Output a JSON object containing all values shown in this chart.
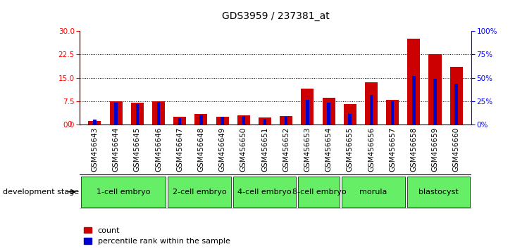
{
  "title": "GDS3959 / 237381_at",
  "samples": [
    "GSM456643",
    "GSM456644",
    "GSM456645",
    "GSM456646",
    "GSM456647",
    "GSM456648",
    "GSM456649",
    "GSM456650",
    "GSM456651",
    "GSM456652",
    "GSM456653",
    "GSM456654",
    "GSM456655",
    "GSM456656",
    "GSM456657",
    "GSM456658",
    "GSM456659",
    "GSM456660"
  ],
  "count_values": [
    1.2,
    7.5,
    7.0,
    7.5,
    2.5,
    3.5,
    2.5,
    3.0,
    2.2,
    2.8,
    11.5,
    8.5,
    6.5,
    13.5,
    8.0,
    27.5,
    22.5,
    18.5
  ],
  "percentile_values": [
    5,
    23,
    22,
    24,
    7,
    10,
    8,
    9,
    6,
    8,
    26,
    23,
    11,
    32,
    25,
    52,
    49,
    44
  ],
  "stage_groups": [
    {
      "name": "1-cell embryo",
      "start": 0,
      "end": 4
    },
    {
      "name": "2-cell embryo",
      "start": 4,
      "end": 7
    },
    {
      "name": "4-cell embryo",
      "start": 7,
      "end": 10
    },
    {
      "name": "8-cell embryo",
      "start": 10,
      "end": 12
    },
    {
      "name": "morula",
      "start": 12,
      "end": 15
    },
    {
      "name": "blastocyst",
      "start": 15,
      "end": 18
    }
  ],
  "ylim_left": [
    0,
    30
  ],
  "ylim_right": [
    0,
    100
  ],
  "yticks_left": [
    0,
    7.5,
    15,
    22.5,
    30
  ],
  "yticks_right": [
    0,
    25,
    50,
    75,
    100
  ],
  "bar_color_red": "#CC0000",
  "bar_color_blue": "#0000CC",
  "stage_bg_color": "#C0C0C0",
  "stage_green_color": "#66EE66",
  "development_label": "development stage",
  "legend_count": "count",
  "legend_percentile": "percentile rank within the sample",
  "title_fontsize": 10,
  "tick_fontsize": 7.5,
  "legend_fontsize": 8,
  "stage_fontsize": 8
}
